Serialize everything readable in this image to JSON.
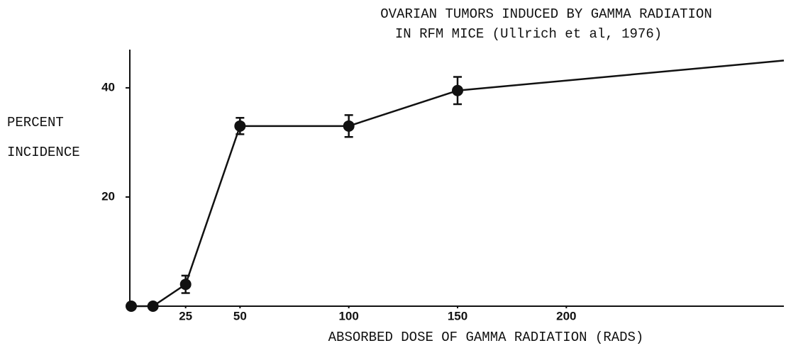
{
  "chart_data": {
    "type": "line",
    "title": [
      "OVARIAN TUMORS INDUCED BY GAMMA RADIATION",
      "IN RFM MICE  (Ullrich et al, 1976)"
    ],
    "ylabel": [
      "PERCENT",
      "INCIDENCE"
    ],
    "xlabel": "ABSORBED DOSE OF GAMMA RADIATION (RADS)",
    "x": [
      0,
      10,
      25,
      50,
      100,
      150
    ],
    "values": [
      0,
      0,
      4,
      33,
      33,
      39.5
    ],
    "errors": [
      null,
      null,
      1.6,
      1.5,
      2,
      2.5
    ],
    "extension": {
      "x": 300,
      "value": 45
    },
    "color": "#111111",
    "xlim": [
      0,
      300
    ],
    "xticks": [
      25,
      50,
      100,
      150,
      200
    ],
    "ylim": [
      0,
      47
    ],
    "yticks": [
      20,
      40
    ],
    "grid": false
  }
}
